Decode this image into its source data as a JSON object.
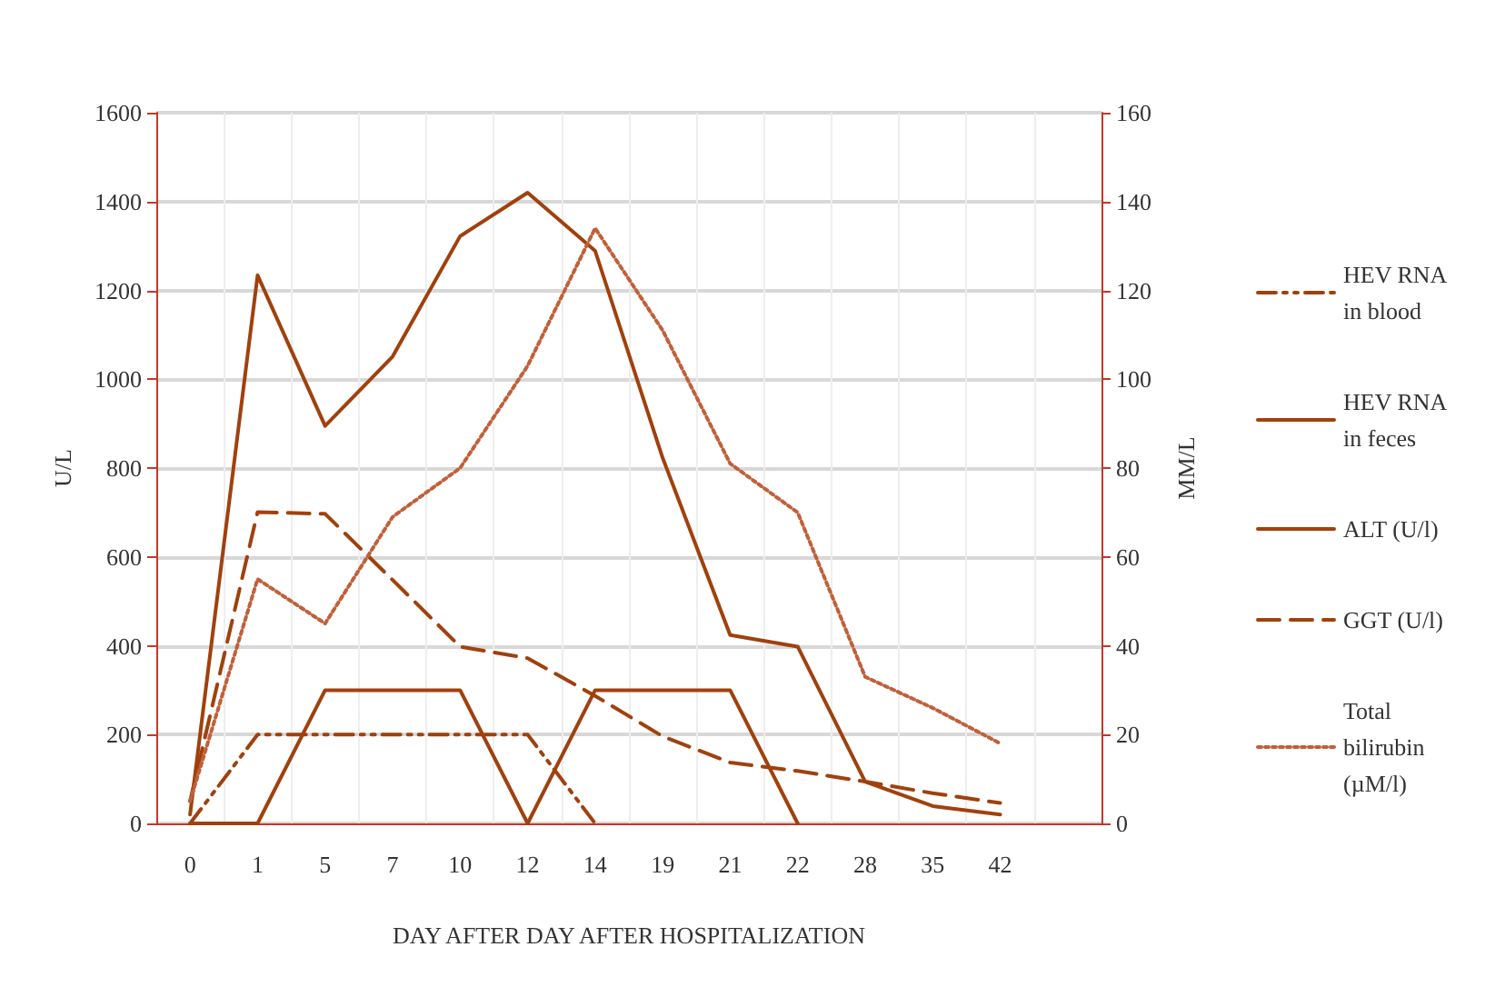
{
  "chart_data": {
    "type": "line",
    "xlabel": "DAY AFTER DAY AFTER HOSPITALIZATION",
    "ylabel": "U/L",
    "y2label": "MM/L",
    "categories": [
      "0",
      "1",
      "5",
      "7",
      "10",
      "12",
      "14",
      "19",
      "21",
      "22",
      "28",
      "35",
      "42",
      null
    ],
    "series": [
      {
        "name": "HEV RNA in blood",
        "color": "#a0410d",
        "line_style": "dashdot",
        "values": [
          0,
          200,
          200,
          200,
          200,
          200,
          0,
          null,
          null,
          null,
          null,
          null,
          null,
          null
        ]
      },
      {
        "name": "HEV RNA in feces",
        "color": "#a0410d",
        "line_style": "solid",
        "values": [
          0,
          0,
          300,
          300,
          300,
          0,
          300,
          300,
          300,
          0,
          null,
          null,
          null,
          null
        ]
      },
      {
        "name": "ALT (U/l)",
        "color": "#a0410d",
        "line_style": "solid",
        "values": [
          20,
          1234,
          895,
          1051,
          1322,
          1420,
          1289,
          823,
          424,
          398,
          94,
          39,
          20,
          null
        ]
      },
      {
        "name": "GGT (U/l)",
        "color": "#a0410d",
        "line_style": "dashed",
        "values": [
          50,
          701,
          697,
          548,
          398,
          372,
          287,
          196,
          137,
          118,
          94,
          68,
          46,
          null
        ]
      },
      {
        "name": "Total bilirubin (µM/l)",
        "color": "#c0603a",
        "line_style": "dotted",
        "axis": "y2",
        "values": [
          5,
          55,
          45,
          69,
          80,
          103,
          134,
          111,
          81,
          70,
          33,
          26,
          18,
          null
        ]
      }
    ],
    "ylim": [
      0,
      1600
    ],
    "yticks": [
      0,
      200,
      400,
      600,
      800,
      1000,
      1200,
      1400,
      1600
    ],
    "y2lim": [
      0,
      160
    ],
    "y2ticks": [
      0,
      20,
      40,
      60,
      80,
      100,
      120,
      140,
      160
    ],
    "grid": true,
    "legend": "right",
    "marker": "none"
  }
}
